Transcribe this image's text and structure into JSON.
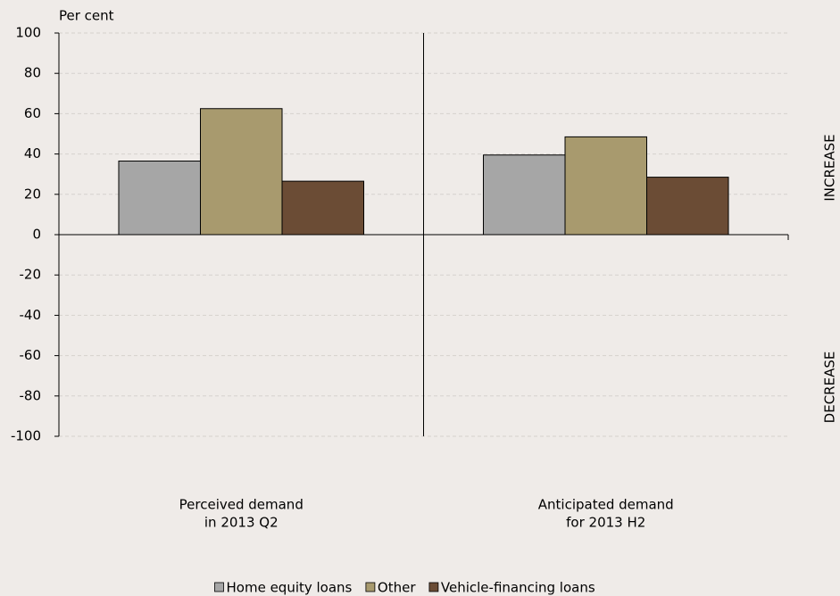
{
  "chart_data": {
    "type": "bar",
    "y_label": "Per cent",
    "categories": [
      [
        "Perceived demand",
        "in 2013 Q2"
      ],
      [
        "Anticipated demand",
        "for 2013 H2"
      ]
    ],
    "series": [
      {
        "name": "Home equity loans",
        "color": "#a6a6a6",
        "values": [
          36.5,
          39.5
        ]
      },
      {
        "name": "Other",
        "color": "#a89a6e",
        "values": [
          62.5,
          48.5
        ]
      },
      {
        "name": "Vehicle-financing loans",
        "color": "#6b4c35",
        "values": [
          26.5,
          28.5
        ]
      }
    ],
    "ylim": [
      -100,
      100
    ],
    "yticks": [
      -100,
      -80,
      -60,
      -40,
      -20,
      0,
      20,
      40,
      60,
      80,
      100
    ],
    "grid": true,
    "side_labels": [
      "INCREASE",
      "DECREASE"
    ]
  }
}
